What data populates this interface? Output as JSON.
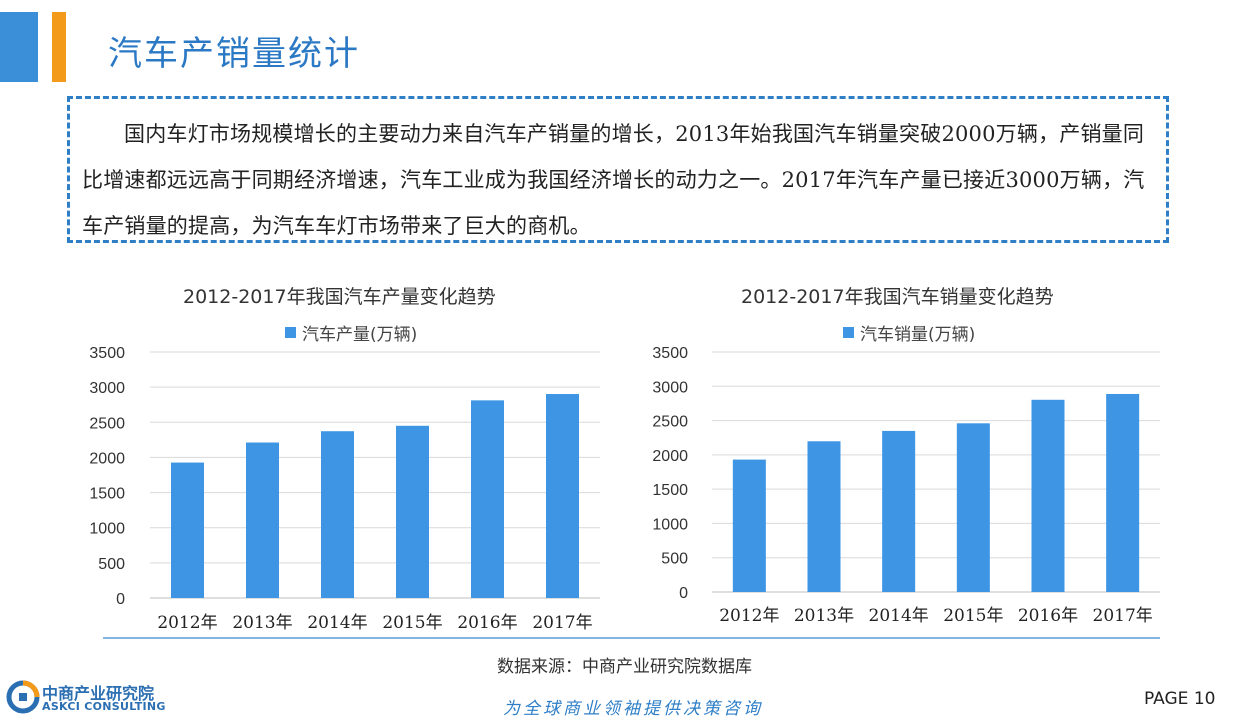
{
  "header": {
    "title": "汽车产销量统计"
  },
  "intro": {
    "text": "国内车灯市场规模增长的主要动力来自汽车产销量的增长，2013年始我国汽车销量突破2000万辆，产销量同比增速都远远高于同期经济增速，汽车工业成为我国经济增长的动力之一。2017年汽车产量已接近3000万辆，汽车产销量的提高，为汽车车灯市场带来了巨大的商机。"
  },
  "chart_data": [
    {
      "type": "bar",
      "title": "2012-2017年我国汽车产量变化趋势",
      "categories": [
        "2012年",
        "2013年",
        "2014年",
        "2015年",
        "2016年",
        "2017年"
      ],
      "series": [
        {
          "name": "汽车产量(万辆)",
          "values": [
            1927,
            2212,
            2373,
            2450,
            2812,
            2902
          ]
        }
      ],
      "yticks": [
        "0",
        "500",
        "1000",
        "1500",
        "2000",
        "2500",
        "3000",
        "3500"
      ],
      "ylim": [
        0,
        3500
      ],
      "grid": true,
      "legend": "top-center",
      "color": "#3d95e3"
    },
    {
      "type": "bar",
      "title": "2012-2017年我国汽车销量变化趋势",
      "categories": [
        "2012年",
        "2013年",
        "2014年",
        "2015年",
        "2016年",
        "2017年"
      ],
      "series": [
        {
          "name": "汽车销量(万辆)",
          "values": [
            1931,
            2198,
            2349,
            2460,
            2803,
            2888
          ]
        }
      ],
      "yticks": [
        "0",
        "500",
        "1000",
        "1500",
        "2000",
        "2500",
        "3000",
        "3500"
      ],
      "ylim": [
        0,
        3500
      ],
      "grid": true,
      "legend": "top-center",
      "color": "#3d95e3"
    }
  ],
  "footer": {
    "source": "数据来源：中商产业研究院数据库",
    "logo_name": "中商产业研究院",
    "logo_sub": "ASKCI CONSULTING",
    "slogan": "为全球商业领袖提供决策咨询",
    "page": "PAGE  10"
  },
  "colors": {
    "accent": "#3a8fd8",
    "accent_secondary": "#f39a1b",
    "bar": "#3d95e3",
    "title": "#2b78c5"
  }
}
